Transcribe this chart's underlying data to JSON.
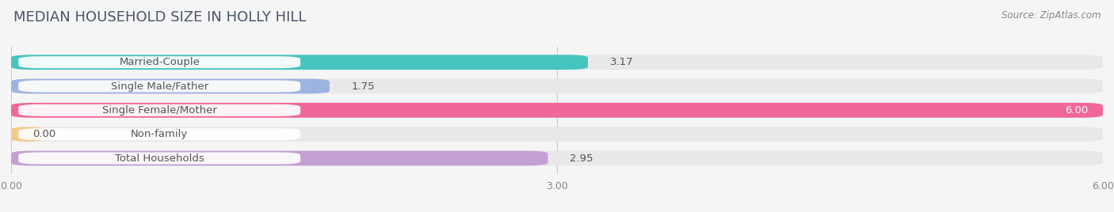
{
  "title": "MEDIAN HOUSEHOLD SIZE IN HOLLY HILL",
  "source": "Source: ZipAtlas.com",
  "categories": [
    "Married-Couple",
    "Single Male/Father",
    "Single Female/Mother",
    "Non-family",
    "Total Households"
  ],
  "values": [
    3.17,
    1.75,
    6.0,
    0.0,
    2.95
  ],
  "bar_colors": [
    "#45c4be",
    "#9db4e0",
    "#f0679a",
    "#f5c98a",
    "#c49fd4"
  ],
  "xlim": [
    0,
    6.0
  ],
  "xticks": [
    0.0,
    3.0,
    6.0
  ],
  "xtick_labels": [
    "0.00",
    "3.00",
    "6.00"
  ],
  "background_color": "#f5f5f5",
  "bar_bg_color": "#e8e8ea",
  "title_fontsize": 13,
  "label_fontsize": 9.5,
  "value_fontsize": 9.5,
  "source_fontsize": 8.5,
  "title_color": "#4a5568",
  "source_color": "#888888",
  "label_text_color": "#555555",
  "value_text_color": "#555555"
}
